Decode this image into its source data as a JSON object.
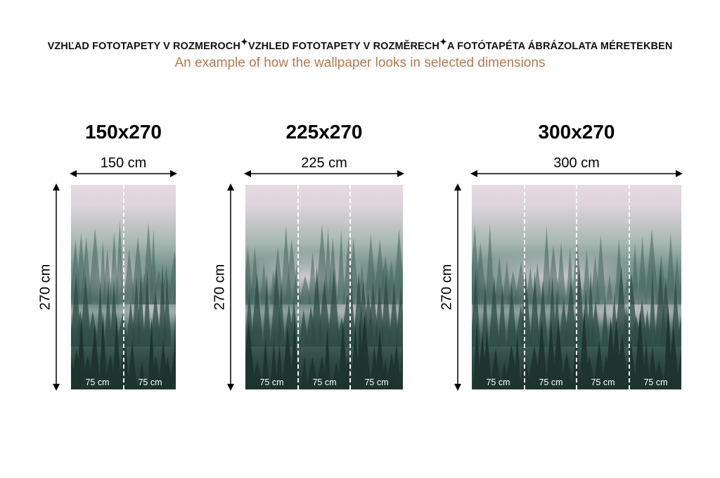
{
  "header": {
    "languages": [
      "VZHĽAD FOTOTAPETY V ROZMEROCH",
      "VZHLED FOTOTAPETY V ROZMĚRECH",
      "A FOTÓTAPÉTA ÁBRÁZOLATA MÉRETEKBEN"
    ],
    "separator_icon": "sparkle-icon",
    "subtitle": "An example of how the wallpaper looks in selected dimensions",
    "subtitle_color": "#b8794f"
  },
  "panels": [
    {
      "title": "150x270",
      "width_label": "150 cm",
      "height_label": "270 cm",
      "segments": [
        "75 cm",
        "75 cm"
      ]
    },
    {
      "title": "225x270",
      "width_label": "225 cm",
      "height_label": "270 cm",
      "segments": [
        "75 cm",
        "75 cm",
        "75 cm"
      ]
    },
    {
      "title": "300x270",
      "width_label": "300 cm",
      "height_label": "270 cm",
      "segments": [
        "75 cm",
        "75 cm",
        "75 cm",
        "75 cm"
      ]
    }
  ]
}
